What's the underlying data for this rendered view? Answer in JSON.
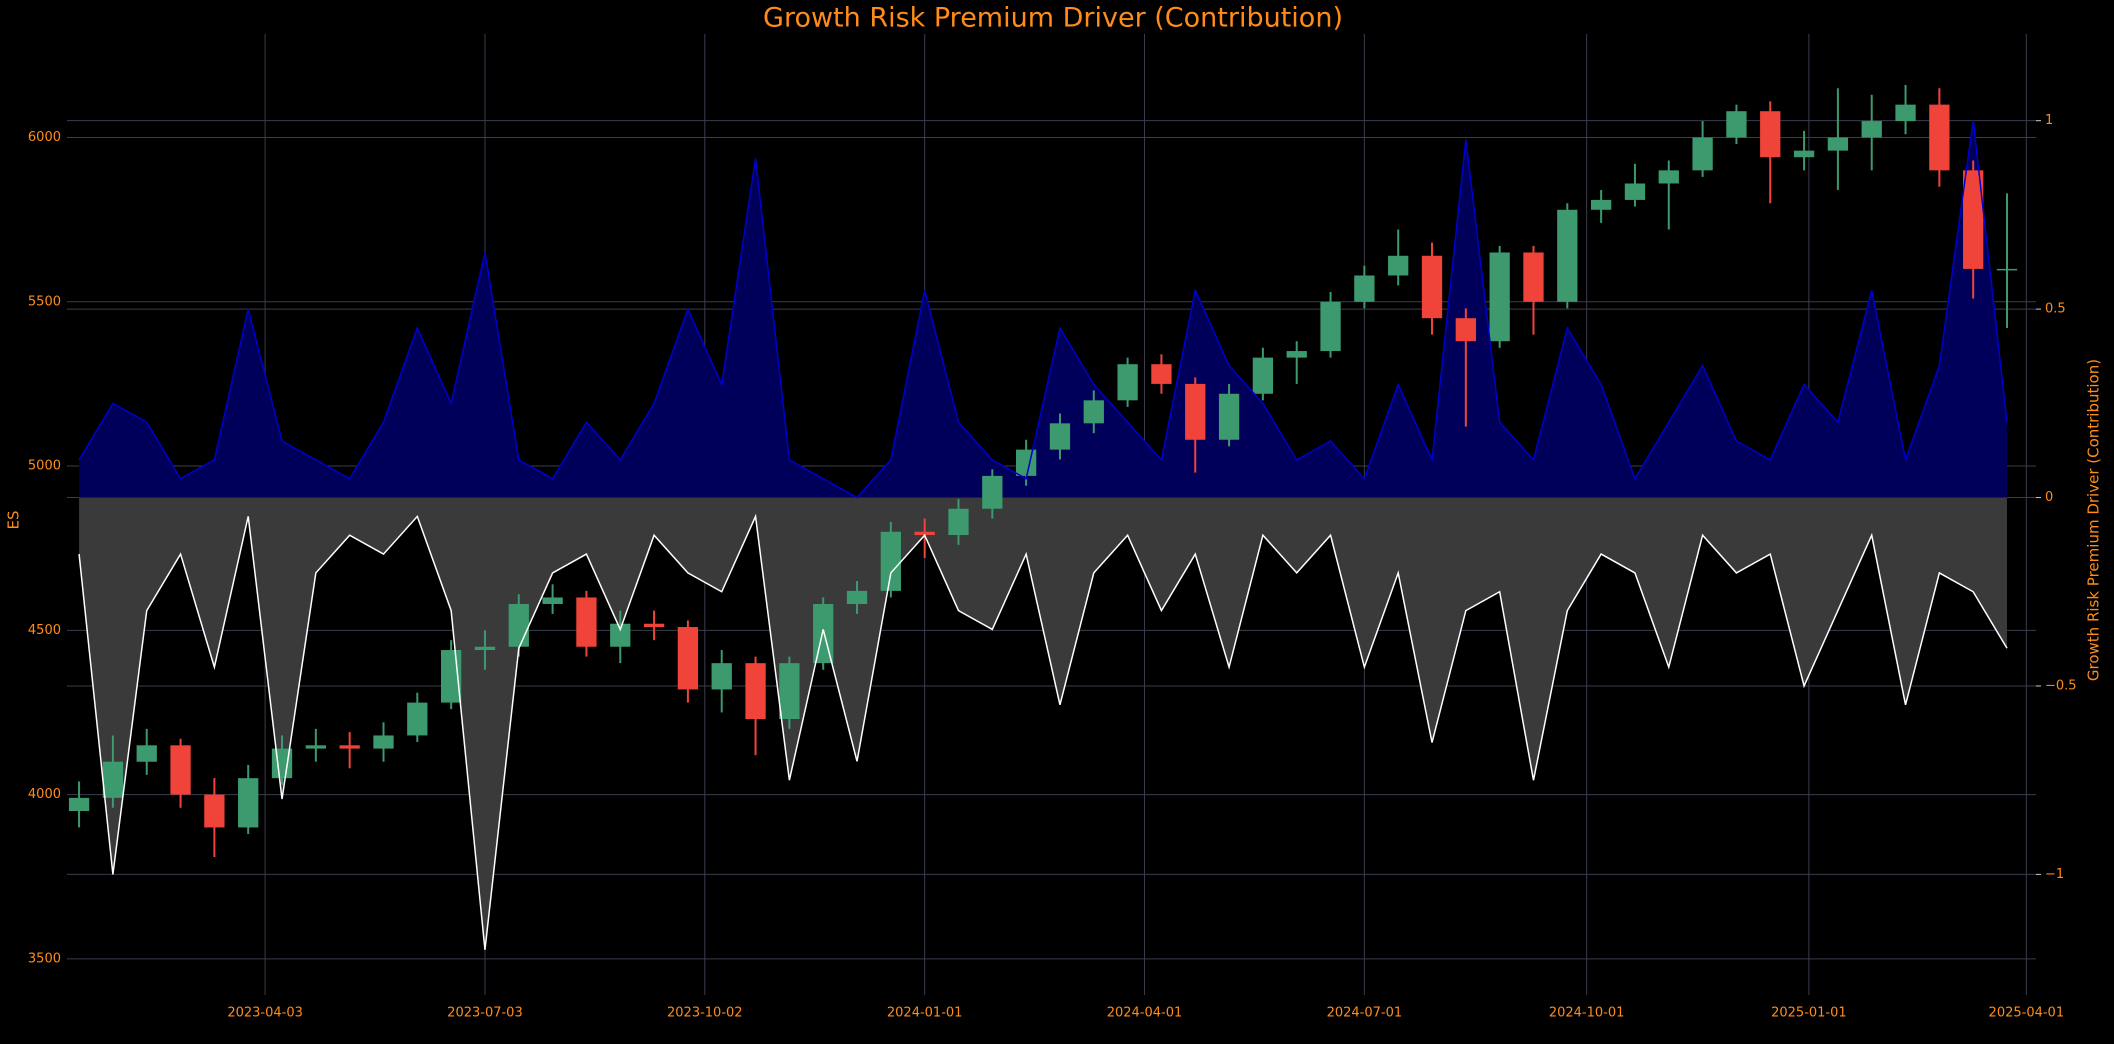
{
  "chart_data": {
    "type": "candlestick",
    "title": "Growth Risk Premium Driver (Contribution)",
    "y_label": "ES",
    "y2_label": "Growth Risk Premium Driver (Contribution)",
    "x": [
      "2023-01-16",
      "2023-01-30",
      "2023-02-13",
      "2023-02-27",
      "2023-03-13",
      "2023-03-27",
      "2023-04-10",
      "2023-04-24",
      "2023-05-08",
      "2023-05-22",
      "2023-06-05",
      "2023-06-19",
      "2023-07-03",
      "2023-07-17",
      "2023-07-31",
      "2023-08-14",
      "2023-08-28",
      "2023-09-11",
      "2023-09-25",
      "2023-10-09",
      "2023-10-23",
      "2023-11-06",
      "2023-11-20",
      "2023-12-04",
      "2023-12-18",
      "2024-01-01",
      "2024-01-15",
      "2024-01-29",
      "2024-02-12",
      "2024-02-26",
      "2024-03-11",
      "2024-03-25",
      "2024-04-08",
      "2024-04-22",
      "2024-05-06",
      "2024-05-20",
      "2024-06-03",
      "2024-06-17",
      "2024-07-01",
      "2024-07-15",
      "2024-07-29",
      "2024-08-12",
      "2024-08-26",
      "2024-09-09",
      "2024-09-23",
      "2024-10-07",
      "2024-10-21",
      "2024-11-04",
      "2024-11-18",
      "2024-12-02",
      "2024-12-16",
      "2024-12-30",
      "2025-01-13",
      "2025-01-27",
      "2025-02-10",
      "2025-02-24",
      "2025-03-10",
      "2025-03-24"
    ],
    "open": [
      3950,
      3990,
      4100,
      4150,
      4000,
      3900,
      4050,
      4140,
      4150,
      4140,
      4180,
      4280,
      4440,
      4450,
      4580,
      4600,
      4450,
      4520,
      4510,
      4320,
      4400,
      4230,
      4400,
      4580,
      4620,
      4800,
      4790,
      4870,
      4970,
      5050,
      5130,
      5200,
      5310,
      5250,
      5080,
      5220,
      5330,
      5350,
      5500,
      5580,
      5640,
      5450,
      5380,
      5650,
      5500,
      5780,
      5810,
      5860,
      5900,
      6000,
      6080,
      5940,
      5960,
      6000,
      6050,
      6100,
      5900,
      5600
    ],
    "high": [
      4040,
      4180,
      4200,
      4170,
      4050,
      4090,
      4180,
      4200,
      4190,
      4220,
      4310,
      4470,
      4500,
      4610,
      4640,
      4620,
      4560,
      4560,
      4530,
      4440,
      4420,
      4420,
      4600,
      4650,
      4830,
      4840,
      4900,
      4990,
      5080,
      5160,
      5230,
      5330,
      5340,
      5270,
      5250,
      5360,
      5380,
      5530,
      5610,
      5720,
      5680,
      5480,
      5670,
      5670,
      5800,
      5840,
      5920,
      5930,
      6050,
      6100,
      6110,
      6020,
      6150,
      6130,
      6160,
      6150,
      5930,
      5830
    ],
    "low": [
      3900,
      3960,
      4060,
      3960,
      3810,
      3880,
      4030,
      4100,
      4080,
      4100,
      4160,
      4260,
      4380,
      4420,
      4550,
      4420,
      4400,
      4470,
      4280,
      4250,
      4120,
      4200,
      4380,
      4550,
      4600,
      4720,
      4760,
      4840,
      4940,
      5020,
      5100,
      5180,
      5220,
      4980,
      5060,
      5200,
      5250,
      5330,
      5480,
      5550,
      5400,
      5120,
      5360,
      5400,
      5480,
      5740,
      5790,
      5720,
      5880,
      5980,
      5800,
      5900,
      5840,
      5900,
      6010,
      5850,
      5510,
      5420
    ],
    "close": [
      3990,
      4100,
      4150,
      4000,
      3900,
      4050,
      4140,
      4150,
      4140,
      4180,
      4280,
      4440,
      4450,
      4580,
      4600,
      4450,
      4520,
      4510,
      4320,
      4400,
      4230,
      4400,
      4580,
      4620,
      4800,
      4790,
      4870,
      4970,
      5050,
      5130,
      5200,
      5310,
      5250,
      5080,
      5220,
      5330,
      5350,
      5500,
      5580,
      5640,
      5450,
      5380,
      5650,
      5500,
      5780,
      5810,
      5860,
      5900,
      6000,
      6080,
      5940,
      5960,
      6000,
      6050,
      6100,
      5900,
      5600,
      5600
    ],
    "up_color": "#3c9a6e",
    "down_color": "#f0443a",
    "series": [
      {
        "color": "#0000cd",
        "fill": "#00005a",
        "axis": "y2",
        "values": [
          0.1,
          0.25,
          0.2,
          0.05,
          0.1,
          0.5,
          0.15,
          0.1,
          0.05,
          0.2,
          0.45,
          0.25,
          0.65,
          0.1,
          0.05,
          0.2,
          0.1,
          0.25,
          0.5,
          0.3,
          0.9,
          0.1,
          0.05,
          0,
          0.1,
          0.55,
          0.2,
          0.1,
          0.05,
          0.45,
          0.3,
          0.2,
          0.1,
          0.55,
          0.35,
          0.25,
          0.1,
          0.15,
          0.05,
          0.3,
          0.1,
          0.95,
          0.2,
          0.1,
          0.45,
          0.3,
          0.05,
          0.2,
          0.35,
          0.15,
          0.1,
          0.3,
          0.2,
          0.55,
          0.1,
          0.35,
          1.0,
          0.2
        ]
      },
      {
        "color": "#ffffff",
        "fill": "#3a3a3a",
        "axis": "y2",
        "values": [
          -0.15,
          -1.0,
          -0.3,
          -0.15,
          -0.45,
          -0.05,
          -0.8,
          -0.2,
          -0.1,
          -0.15,
          -0.05,
          -0.3,
          -1.2,
          -0.4,
          -0.2,
          -0.15,
          -0.35,
          -0.1,
          -0.2,
          -0.25,
          -0.05,
          -0.75,
          -0.35,
          -0.7,
          -0.2,
          -0.1,
          -0.3,
          -0.35,
          -0.15,
          -0.55,
          -0.2,
          -0.1,
          -0.3,
          -0.15,
          -0.45,
          -0.1,
          -0.2,
          -0.1,
          -0.45,
          -0.2,
          -0.65,
          -0.3,
          -0.25,
          -0.75,
          -0.3,
          -0.15,
          -0.2,
          -0.45,
          -0.1,
          -0.2,
          -0.15,
          -0.5,
          -0.3,
          -0.1,
          -0.55,
          -0.2,
          -0.25,
          -0.4
        ]
      }
    ],
    "xlim": [
      "2023-01-11",
      "2025-04-05"
    ],
    "xticks": [
      "2023-04-03",
      "2023-07-03",
      "2023-10-02",
      "2024-01-01",
      "2024-04-01",
      "2024-07-01",
      "2024-10-01",
      "2025-01-01",
      "2025-04-01"
    ],
    "ylim": [
      3390,
      6315
    ],
    "yticks": [
      3500,
      4000,
      4500,
      5000,
      5500,
      6000
    ],
    "y2lim": [
      -1.32,
      1.23
    ],
    "y2ticks": [
      {
        "value": -1,
        "label": "−1"
      },
      {
        "value": -0.5,
        "label": "−0.5"
      },
      0,
      0.5,
      1
    ],
    "grid": true
  }
}
